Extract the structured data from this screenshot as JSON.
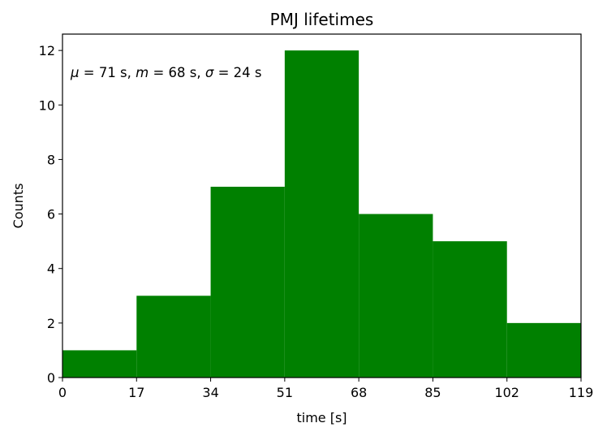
{
  "chart_data": {
    "type": "bar",
    "title": "PMJ lifetimes",
    "xlabel": "time [s]",
    "ylabel": "Counts",
    "bin_edges": [
      0,
      17,
      34,
      51,
      68,
      85,
      102,
      119
    ],
    "values": [
      1,
      3,
      7,
      12,
      6,
      5,
      2
    ],
    "xlim": [
      0,
      119
    ],
    "ylim": [
      0,
      12.6
    ],
    "xticks": [
      0,
      17,
      34,
      51,
      68,
      85,
      102,
      119
    ],
    "yticks": [
      0,
      2,
      4,
      6,
      8,
      10,
      12
    ],
    "bar_color": "#008000",
    "grid": false,
    "annotation": {
      "mu_symbol": "μ",
      "mu_text": " = 71 s, ",
      "m_symbol": "m",
      "m_text": " = 68 s, ",
      "sigma_symbol": "σ",
      "sigma_text": " = 24 s"
    }
  }
}
